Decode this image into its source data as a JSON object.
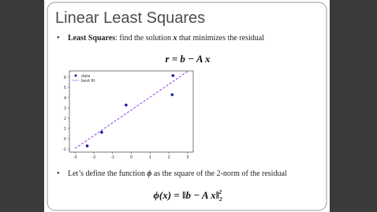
{
  "slide": {
    "title": "Linear Least Squares",
    "bullet1": [
      "Least Squares",
      ": find the solution ",
      "x",
      " that minimizes the residual"
    ],
    "equation1": "r = b − A x",
    "bullet2": [
      "Let’s define the function ",
      "ϕ",
      " as the square of the 2-norm of the residual"
    ],
    "equation2": [
      "ϕ(x) = ‖b − A x‖",
      "2",
      "2"
    ]
  },
  "chart_data": {
    "type": "scatter",
    "series": [
      {
        "name": "data",
        "color": "#1a1aa8",
        "x": [
          -2.35,
          -1.58,
          -0.28,
          2.18,
          2.22
        ],
        "values": [
          -0.7,
          0.63,
          3.28,
          4.29,
          6.15
        ]
      },
      {
        "name": "best fit",
        "color": "#8a2be2",
        "style": "dashed",
        "x": [
          -3,
          3
        ],
        "values": [
          -0.95,
          6.55
        ]
      }
    ],
    "xlim": [
      -3.3,
      3.3
    ],
    "ylim": [
      -1.3,
      6.6
    ],
    "xticks": [
      -3,
      -2,
      -1,
      0,
      1,
      2,
      3
    ],
    "yticks": [
      -1,
      0,
      1,
      2,
      3,
      4,
      5,
      6
    ],
    "legend": "upper left"
  }
}
